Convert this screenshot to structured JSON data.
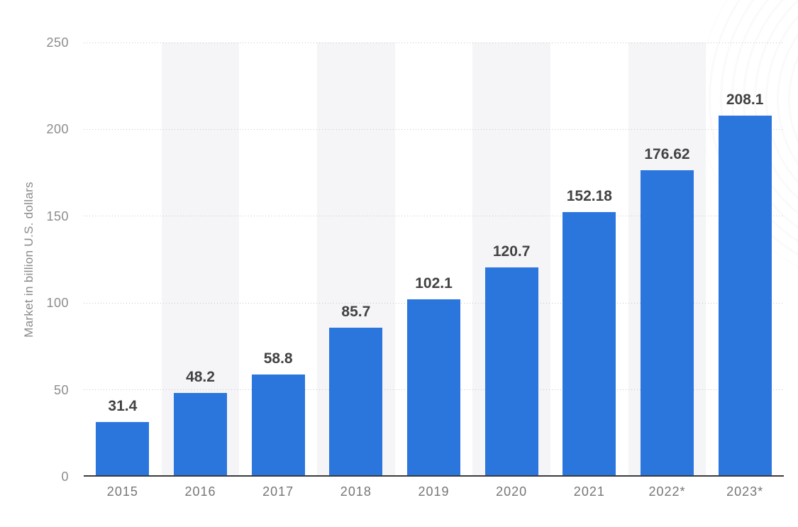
{
  "chart_data": {
    "type": "bar",
    "categories": [
      "2015",
      "2016",
      "2017",
      "2018",
      "2019",
      "2020",
      "2021",
      "2022*",
      "2023*"
    ],
    "values": [
      31.4,
      48.2,
      58.8,
      85.7,
      102.1,
      120.7,
      152.18,
      176.62,
      208.1
    ],
    "value_labels": [
      "31.4",
      "48.2",
      "58.8",
      "85.7",
      "102.1",
      "120.7",
      "152.18",
      "176.62",
      "208.1"
    ],
    "title": "",
    "xlabel": "",
    "ylabel": "Market in billion U.S. dollars",
    "ylim": [
      0,
      250
    ],
    "yticks": [
      0,
      50,
      100,
      150,
      200,
      250
    ],
    "grid": "horizontal-dotted",
    "legend": "none",
    "bar_color": "#2b76dd",
    "stripe_color": "#f5f5f7",
    "striped_categories": [
      "2016",
      "2018",
      "2020",
      "2022*"
    ],
    "value_label_color": "#424242",
    "axis_label_color": "#8c8c8c",
    "x_label_color": "#767676",
    "axis_line_color": "#3a3a3a"
  }
}
